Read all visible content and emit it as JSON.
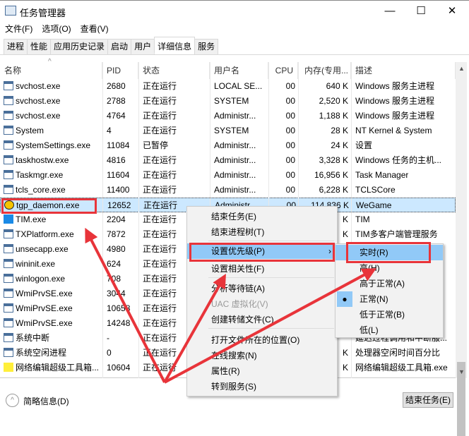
{
  "window": {
    "title": "任务管理器",
    "minimize": "—",
    "maximize": "☐",
    "close": "✕"
  },
  "menu": [
    "文件(F)",
    "选项(O)",
    "查看(V)"
  ],
  "tabs": [
    "进程",
    "性能",
    "应用历史记录",
    "启动",
    "用户",
    "详细信息",
    "服务"
  ],
  "active_tab": "详细信息",
  "columns": [
    "名称",
    "PID",
    "状态",
    "用户名",
    "CPU",
    "内存(专用...",
    "描述"
  ],
  "rows": [
    [
      "svchost.exe",
      "2680",
      "正在运行",
      "LOCAL SE...",
      "00",
      "640 K",
      "Windows 服务主进程"
    ],
    [
      "svchost.exe",
      "2788",
      "正在运行",
      "SYSTEM",
      "00",
      "2,520 K",
      "Windows 服务主进程"
    ],
    [
      "svchost.exe",
      "4764",
      "正在运行",
      "Administr...",
      "00",
      "1,188 K",
      "Windows 服务主进程"
    ],
    [
      "System",
      "4",
      "正在运行",
      "SYSTEM",
      "00",
      "28 K",
      "NT Kernel & System"
    ],
    [
      "SystemSettings.exe",
      "11084",
      "已暂停",
      "Administr...",
      "00",
      "24 K",
      "设置"
    ],
    [
      "taskhostw.exe",
      "4816",
      "正在运行",
      "Administr...",
      "00",
      "3,328 K",
      "Windows 任务的主机..."
    ],
    [
      "Taskmgr.exe",
      "11604",
      "正在运行",
      "Administr...",
      "00",
      "16,956 K",
      "Task Manager"
    ],
    [
      "tcls_core.exe",
      "11400",
      "正在运行",
      "Administr...",
      "00",
      "6,228 K",
      "TCLSCore"
    ],
    [
      "tgp_daemon.exe",
      "12652",
      "正在运行",
      "Administr...",
      "00",
      "114,836 K",
      "WeGame"
    ],
    [
      "TIM.exe",
      "2204",
      "正在运行",
      "",
      "",
      "K",
      "TIM"
    ],
    [
      "TXPlatform.exe",
      "7872",
      "正在运行",
      "",
      "",
      "K",
      "TIM多客户端管理服务"
    ],
    [
      "unsecapp.exe",
      "4980",
      "正在运行",
      "",
      "",
      "",
      ""
    ],
    [
      "wininit.exe",
      "624",
      "正在运行",
      "",
      "",
      "",
      ""
    ],
    [
      "winlogon.exe",
      "708",
      "正在运行",
      "",
      "",
      "",
      ""
    ],
    [
      "WmiPrvSE.exe",
      "3044",
      "正在运行",
      "",
      "",
      "",
      ""
    ],
    [
      "WmiPrvSE.exe",
      "10658",
      "正在运行",
      "",
      "",
      "",
      ""
    ],
    [
      "WmiPrvSE.exe",
      "14248",
      "正在运行",
      "",
      "",
      "",
      ""
    ],
    [
      "系统中断",
      "-",
      "正在运行",
      "",
      "",
      "",
      "延迟过程调用和中断服..."
    ],
    [
      "系统空闲进程",
      "0",
      "正在运行",
      "",
      "",
      "K",
      "处理器空闲时间百分比"
    ],
    [
      "网络编辑超级工具箱...",
      "10604",
      "正在运行",
      "",
      "",
      "K",
      "网络编辑超级工具箱.exe"
    ]
  ],
  "context_menu": [
    "结束任务(E)",
    "结束进程树(T)",
    "设置优先级(P)",
    "设置相关性(F)",
    "分析等待链(A)",
    "UAC 虚拟化(V)",
    "创建转储文件(C)",
    "打开文件所在的位置(O)",
    "在线搜索(N)",
    "属性(R)",
    "转到服务(S)"
  ],
  "priority_menu": [
    "实时(R)",
    "高(H)",
    "高于正常(A)",
    "正常(N)",
    "低于正常(B)",
    "低(L)"
  ],
  "priority_selected": "正常(N)",
  "footer": {
    "less_details": "简略信息(D)",
    "end_task": "结束任务(E)"
  },
  "colors": {
    "selection": "#cce8ff",
    "menu_highlight": "#91c9f7",
    "annotation": "#e8343a"
  }
}
